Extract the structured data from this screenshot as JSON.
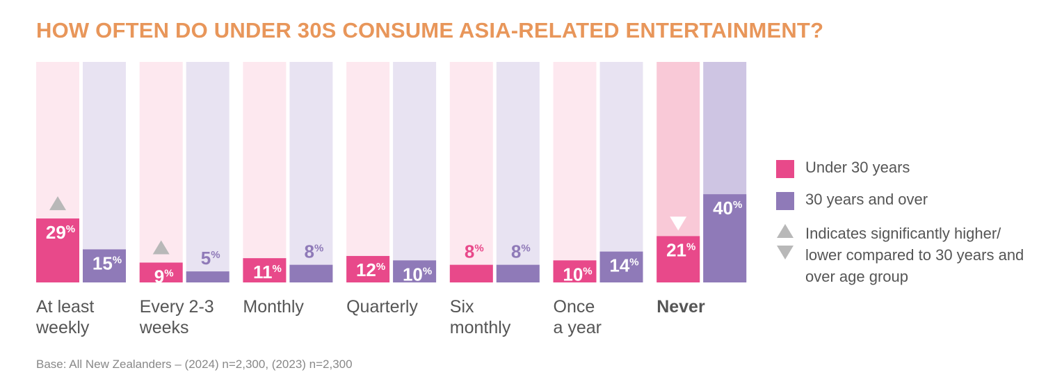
{
  "title": "HOW OFTEN DO UNDER 30S CONSUME ASIA-RELATED ENTERTAINMENT?",
  "base_note": "Base: All New Zealanders – (2024) n=2,300, (2023) n=2,300",
  "colors": {
    "title": "#e8965a",
    "under30": "#e8498a",
    "over30": "#8f7ab8",
    "under30_bg": "#fde8ef",
    "over30_bg": "#e8e3f2",
    "under30_bg_highlight": "#f9c9d7",
    "over30_bg_highlight": "#cec5e3",
    "indicator": "#b8b8b8"
  },
  "legend": {
    "under30": "Under 30 years",
    "over30": "30 years and over",
    "indicator_line1": "Indicates significantly higher/",
    "indicator_line2": "lower compared to 30 years and",
    "indicator_line3": "over age group"
  },
  "chart_data": {
    "type": "bar",
    "categories": [
      [
        "At least",
        "weekly"
      ],
      [
        "Every 2-3",
        "weeks"
      ],
      [
        "Monthly"
      ],
      [
        "Quarterly"
      ],
      [
        "Six",
        "monthly"
      ],
      [
        "Once",
        "a year"
      ],
      [
        "Never"
      ]
    ],
    "highlight_category": 6,
    "ylim": [
      0,
      100
    ],
    "unit": "%",
    "series": [
      {
        "name": "Under 30 years",
        "values": [
          29,
          9,
          11,
          12,
          8,
          10,
          21
        ],
        "significance": [
          "higher",
          null,
          null,
          null,
          null,
          null,
          "lower"
        ],
        "faint_indicator": [
          false,
          true,
          false,
          false,
          false,
          false,
          false
        ]
      },
      {
        "name": "30 years and over",
        "values": [
          15,
          5,
          8,
          10,
          8,
          14,
          40
        ]
      }
    ]
  }
}
